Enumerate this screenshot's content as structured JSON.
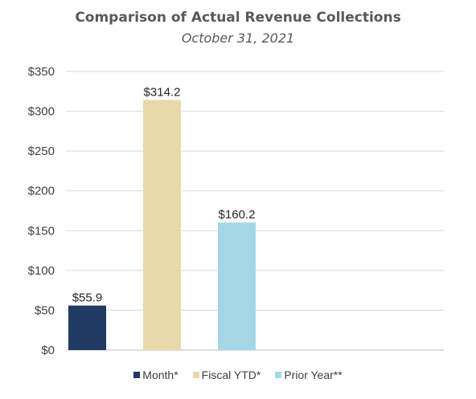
{
  "chart_data": {
    "type": "bar",
    "title": "Comparison of Actual Revenue Collections",
    "subtitle": "October 31, 2021",
    "categories": [
      "Month*",
      "Fiscal YTD*",
      "Prior Year**"
    ],
    "values": [
      55.9,
      314.2,
      160.2
    ],
    "data_labels": [
      "$55.9",
      "$314.2",
      "$160.2"
    ],
    "colors": [
      "#1f3a63",
      "#e8d9ab",
      "#a4d6e8"
    ],
    "ylim": [
      0,
      350
    ],
    "yticks": [
      0,
      50,
      100,
      150,
      200,
      250,
      300,
      350
    ],
    "ytick_labels": [
      "$0",
      "$50",
      "$100",
      "$150",
      "$200",
      "$250",
      "$300",
      "$350"
    ],
    "grid": true,
    "legend": {
      "position": "bottom",
      "entries": [
        "Month*",
        "Fiscal YTD*",
        "Prior Year**"
      ]
    }
  }
}
